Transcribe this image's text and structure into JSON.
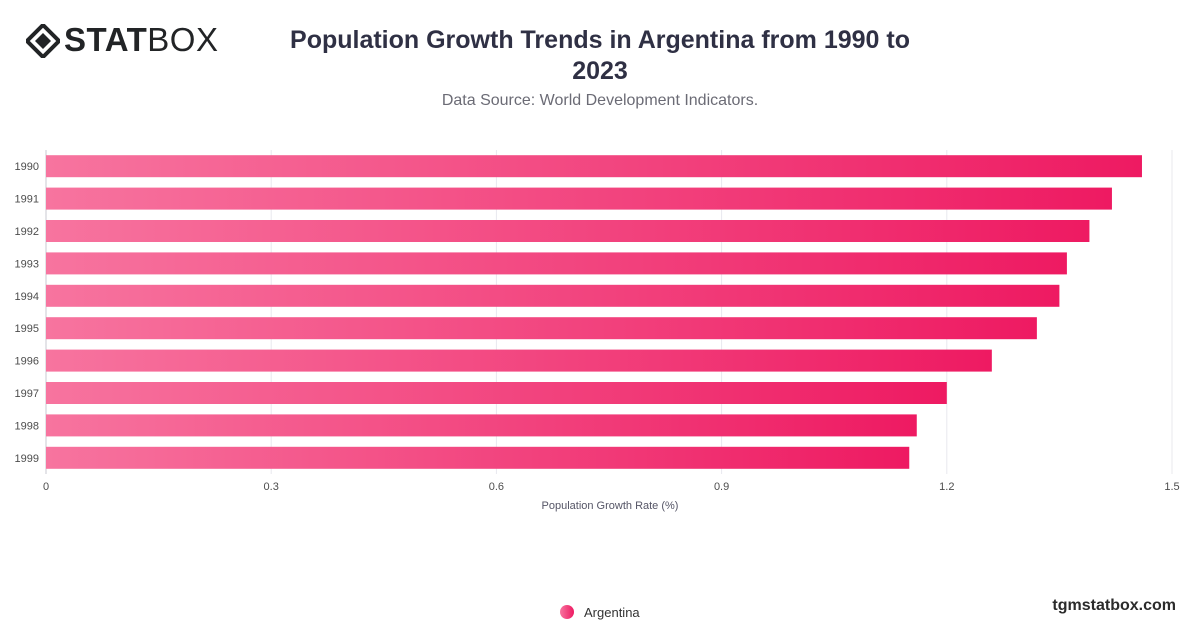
{
  "brand": {
    "logo_bold": "STAT",
    "logo_light": "BOX",
    "watermark": "tgmstatbox.com"
  },
  "header": {
    "title": "Population Growth Trends in Argentina from 1990 to 2023",
    "subtitle": "Data Source: World Development Indicators."
  },
  "colors": {
    "bar_start": "#f7749f",
    "bar_end": "#ee1a62",
    "grid": "#e8e8ee",
    "axis_text": "#4d4d4d"
  },
  "chart_data": {
    "type": "bar",
    "orientation": "horizontal",
    "categories": [
      "1990",
      "1991",
      "1992",
      "1993",
      "1994",
      "1995",
      "1996",
      "1997",
      "1998",
      "1999"
    ],
    "series": [
      {
        "name": "Argentina",
        "values": [
          1.46,
          1.42,
          1.39,
          1.36,
          1.35,
          1.32,
          1.26,
          1.2,
          1.16,
          1.15
        ]
      }
    ],
    "xlabel": "Population Growth Rate (%)",
    "ylabel": "",
    "xlim": [
      0,
      1.5
    ],
    "xticks": [
      "0",
      "0.3",
      "0.6",
      "0.9",
      "1.2",
      "1.5"
    ],
    "grid": true,
    "legend": "bottom-center"
  }
}
